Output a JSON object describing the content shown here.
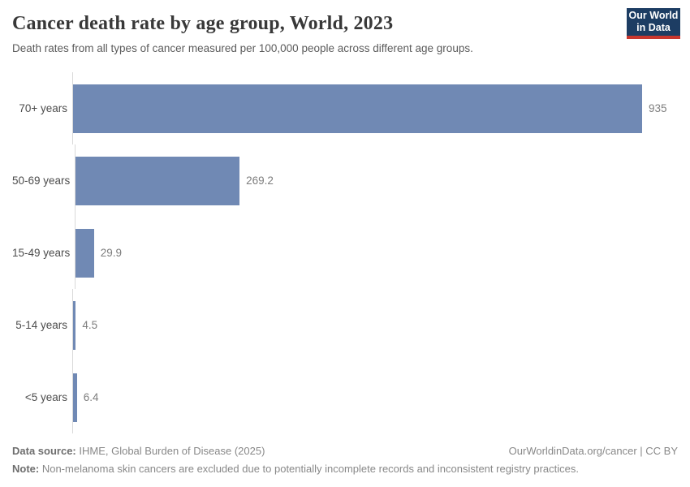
{
  "header": {
    "title": "Cancer death rate by age group, World, 2023",
    "subtitle": "Death rates from all types of cancer measured per 100,000 people across different age groups.",
    "logo": {
      "line1": "Our World",
      "line2": "in Data"
    }
  },
  "chart_data": {
    "type": "bar",
    "orientation": "horizontal",
    "title": "Cancer death rate by age group, World, 2023",
    "categories": [
      "70+ years",
      "50-69 years",
      "15-49 years",
      "5-14 years",
      "<5 years"
    ],
    "values": [
      935,
      269.2,
      29.9,
      4.5,
      6.4
    ],
    "value_labels": [
      "935",
      "269.2",
      "29.9",
      "4.5",
      "6.4"
    ],
    "xlabel": "",
    "ylabel": "",
    "xlim": [
      0,
      935
    ],
    "grid": false,
    "legend": "none",
    "bar_color": "#7089b4",
    "axis_line_color": "#d9d9d9"
  },
  "footer": {
    "datasource_label": "Data source:",
    "datasource_value": " IHME, Global Burden of Disease (2025)",
    "attribution": "OurWorldinData.org/cancer | CC BY",
    "note_label": "Note:",
    "note_value": " Non-melanoma skin cancers are excluded due to potentially incomplete records and inconsistent registry practices."
  }
}
